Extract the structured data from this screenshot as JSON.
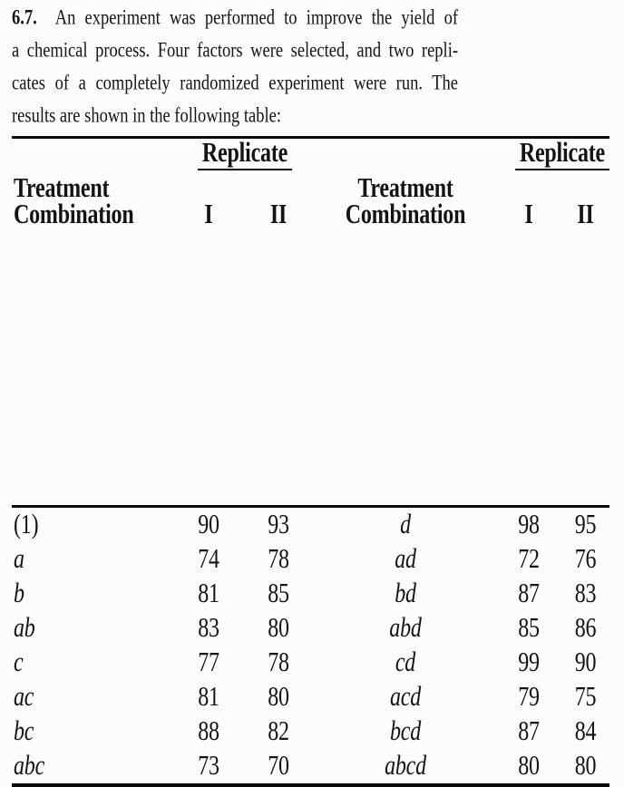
{
  "problem": {
    "number": "6.7.",
    "line1": "An experiment was performed to improve the yield of",
    "line2": "a chemical process. Four factors were selected, and two repli-",
    "line3": "cates of a completely randomized experiment were run. The",
    "line4": "results are shown in the following table:"
  },
  "table": {
    "replicate_label": "Replicate",
    "treatment_label_line1": "Treatment",
    "treatment_label_line2": "Combination",
    "replicate_columns": [
      "I",
      "II"
    ],
    "left_rows": [
      {
        "treatment": "(1)",
        "rep1": "90",
        "rep2": "93"
      },
      {
        "treatment": "a",
        "rep1": "74",
        "rep2": "78"
      },
      {
        "treatment": "b",
        "rep1": "81",
        "rep2": "85"
      },
      {
        "treatment": "ab",
        "rep1": "83",
        "rep2": "80"
      },
      {
        "treatment": "c",
        "rep1": "77",
        "rep2": "78"
      },
      {
        "treatment": "ac",
        "rep1": "81",
        "rep2": "80"
      },
      {
        "treatment": "bc",
        "rep1": "88",
        "rep2": "82"
      },
      {
        "treatment": "abc",
        "rep1": "73",
        "rep2": "70"
      }
    ],
    "right_rows": [
      {
        "treatment": "d",
        "rep1": "98",
        "rep2": "95"
      },
      {
        "treatment": "ad",
        "rep1": "72",
        "rep2": "76"
      },
      {
        "treatment": "bd",
        "rep1": "87",
        "rep2": "83"
      },
      {
        "treatment": "abd",
        "rep1": "85",
        "rep2": "86"
      },
      {
        "treatment": "cd",
        "rep1": "99",
        "rep2": "90"
      },
      {
        "treatment": "acd",
        "rep1": "79",
        "rep2": "75"
      },
      {
        "treatment": "bcd",
        "rep1": "87",
        "rep2": "84"
      },
      {
        "treatment": "abcd",
        "rep1": "80",
        "rep2": "80"
      }
    ]
  }
}
